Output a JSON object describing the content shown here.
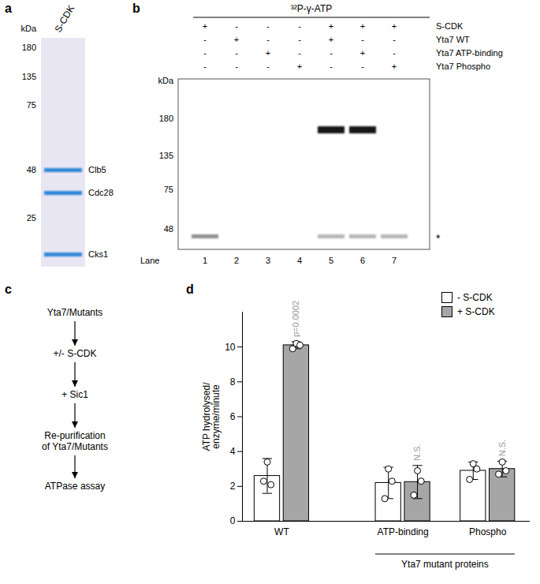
{
  "panels": {
    "a": {
      "label": "a",
      "lane": "S-CDK",
      "unit": "kDa",
      "markers": [
        180,
        135,
        75,
        48,
        25
      ],
      "bands": [
        "Clb5",
        "Cdc28",
        "Cks1"
      ]
    },
    "b": {
      "label": "b",
      "header": "³²P-γ-ATP",
      "conditions": [
        {
          "name": "S-CDK",
          "signs": [
            "+",
            "-",
            "-",
            "-",
            "+",
            "+",
            "+"
          ]
        },
        {
          "name": "Yta7 WT",
          "signs": [
            "-",
            "+",
            "-",
            "-",
            "+",
            "-",
            "-"
          ]
        },
        {
          "name": "Yta7 ATP-binding",
          "signs": [
            "-",
            "-",
            "+",
            "-",
            "-",
            "+",
            "-"
          ]
        },
        {
          "name": "Yta7 Phospho",
          "signs": [
            "-",
            "-",
            "-",
            "+",
            "-",
            "-",
            "+"
          ]
        }
      ],
      "unit": "kDa",
      "markers": [
        180,
        135,
        75,
        48
      ],
      "lane_title": "Lane",
      "lanes": [
        1,
        2,
        3,
        4,
        5,
        6,
        7
      ],
      "yta7_band_lanes": [
        5,
        6
      ],
      "marked_band": {
        "symbol": "*",
        "lanes": [
          1,
          5,
          6,
          7
        ]
      }
    },
    "c": {
      "label": "c",
      "steps": [
        "Yta7/Mutants",
        "+/- S-CDK",
        "+ Sic1",
        "Re-purification\nof Yta7/Mutants",
        "ATPase assay"
      ]
    },
    "d": {
      "label": "d"
    }
  },
  "chart_data": {
    "type": "bar",
    "y_label": "ATP hydrolysed/\nenzyme/minute",
    "categories": [
      "WT",
      "ATP-binding",
      "Phospho"
    ],
    "x_group": {
      "label": "Yta7 mutant proteins",
      "categories": [
        "ATP-binding",
        "Phospho"
      ]
    },
    "series": [
      {
        "name": "- S-CDK",
        "color": "#ffffff",
        "values": [
          2.6,
          2.2,
          2.9
        ],
        "error": [
          1.0,
          0.9,
          0.5
        ],
        "points": [
          [
            3.4,
            2.3,
            2.1
          ],
          [
            3.0,
            1.3,
            2.3
          ],
          [
            3.3,
            2.4,
            3.0
          ]
        ]
      },
      {
        "name": "+ S-CDK",
        "color": "#a6a6a6",
        "values": [
          10.1,
          2.25,
          3.0
        ],
        "error": [
          0.2,
          0.95,
          0.45
        ],
        "points": [
          [
            10.2,
            9.9,
            10.1
          ],
          [
            2.9,
            1.5,
            2.3
          ],
          [
            3.4,
            2.7,
            2.9
          ]
        ]
      }
    ],
    "annotations": [
      {
        "category": "WT",
        "series": "+ S-CDK",
        "text": "p=0.0002"
      },
      {
        "category": "ATP-binding",
        "series": "+ S-CDK",
        "text": "N.S."
      },
      {
        "category": "Phospho",
        "series": "+ S-CDK",
        "text": "N.S."
      }
    ],
    "ylim": [
      0,
      12
    ],
    "yticks": [
      0,
      2,
      4,
      6,
      8,
      10
    ],
    "legend": "top-right"
  }
}
